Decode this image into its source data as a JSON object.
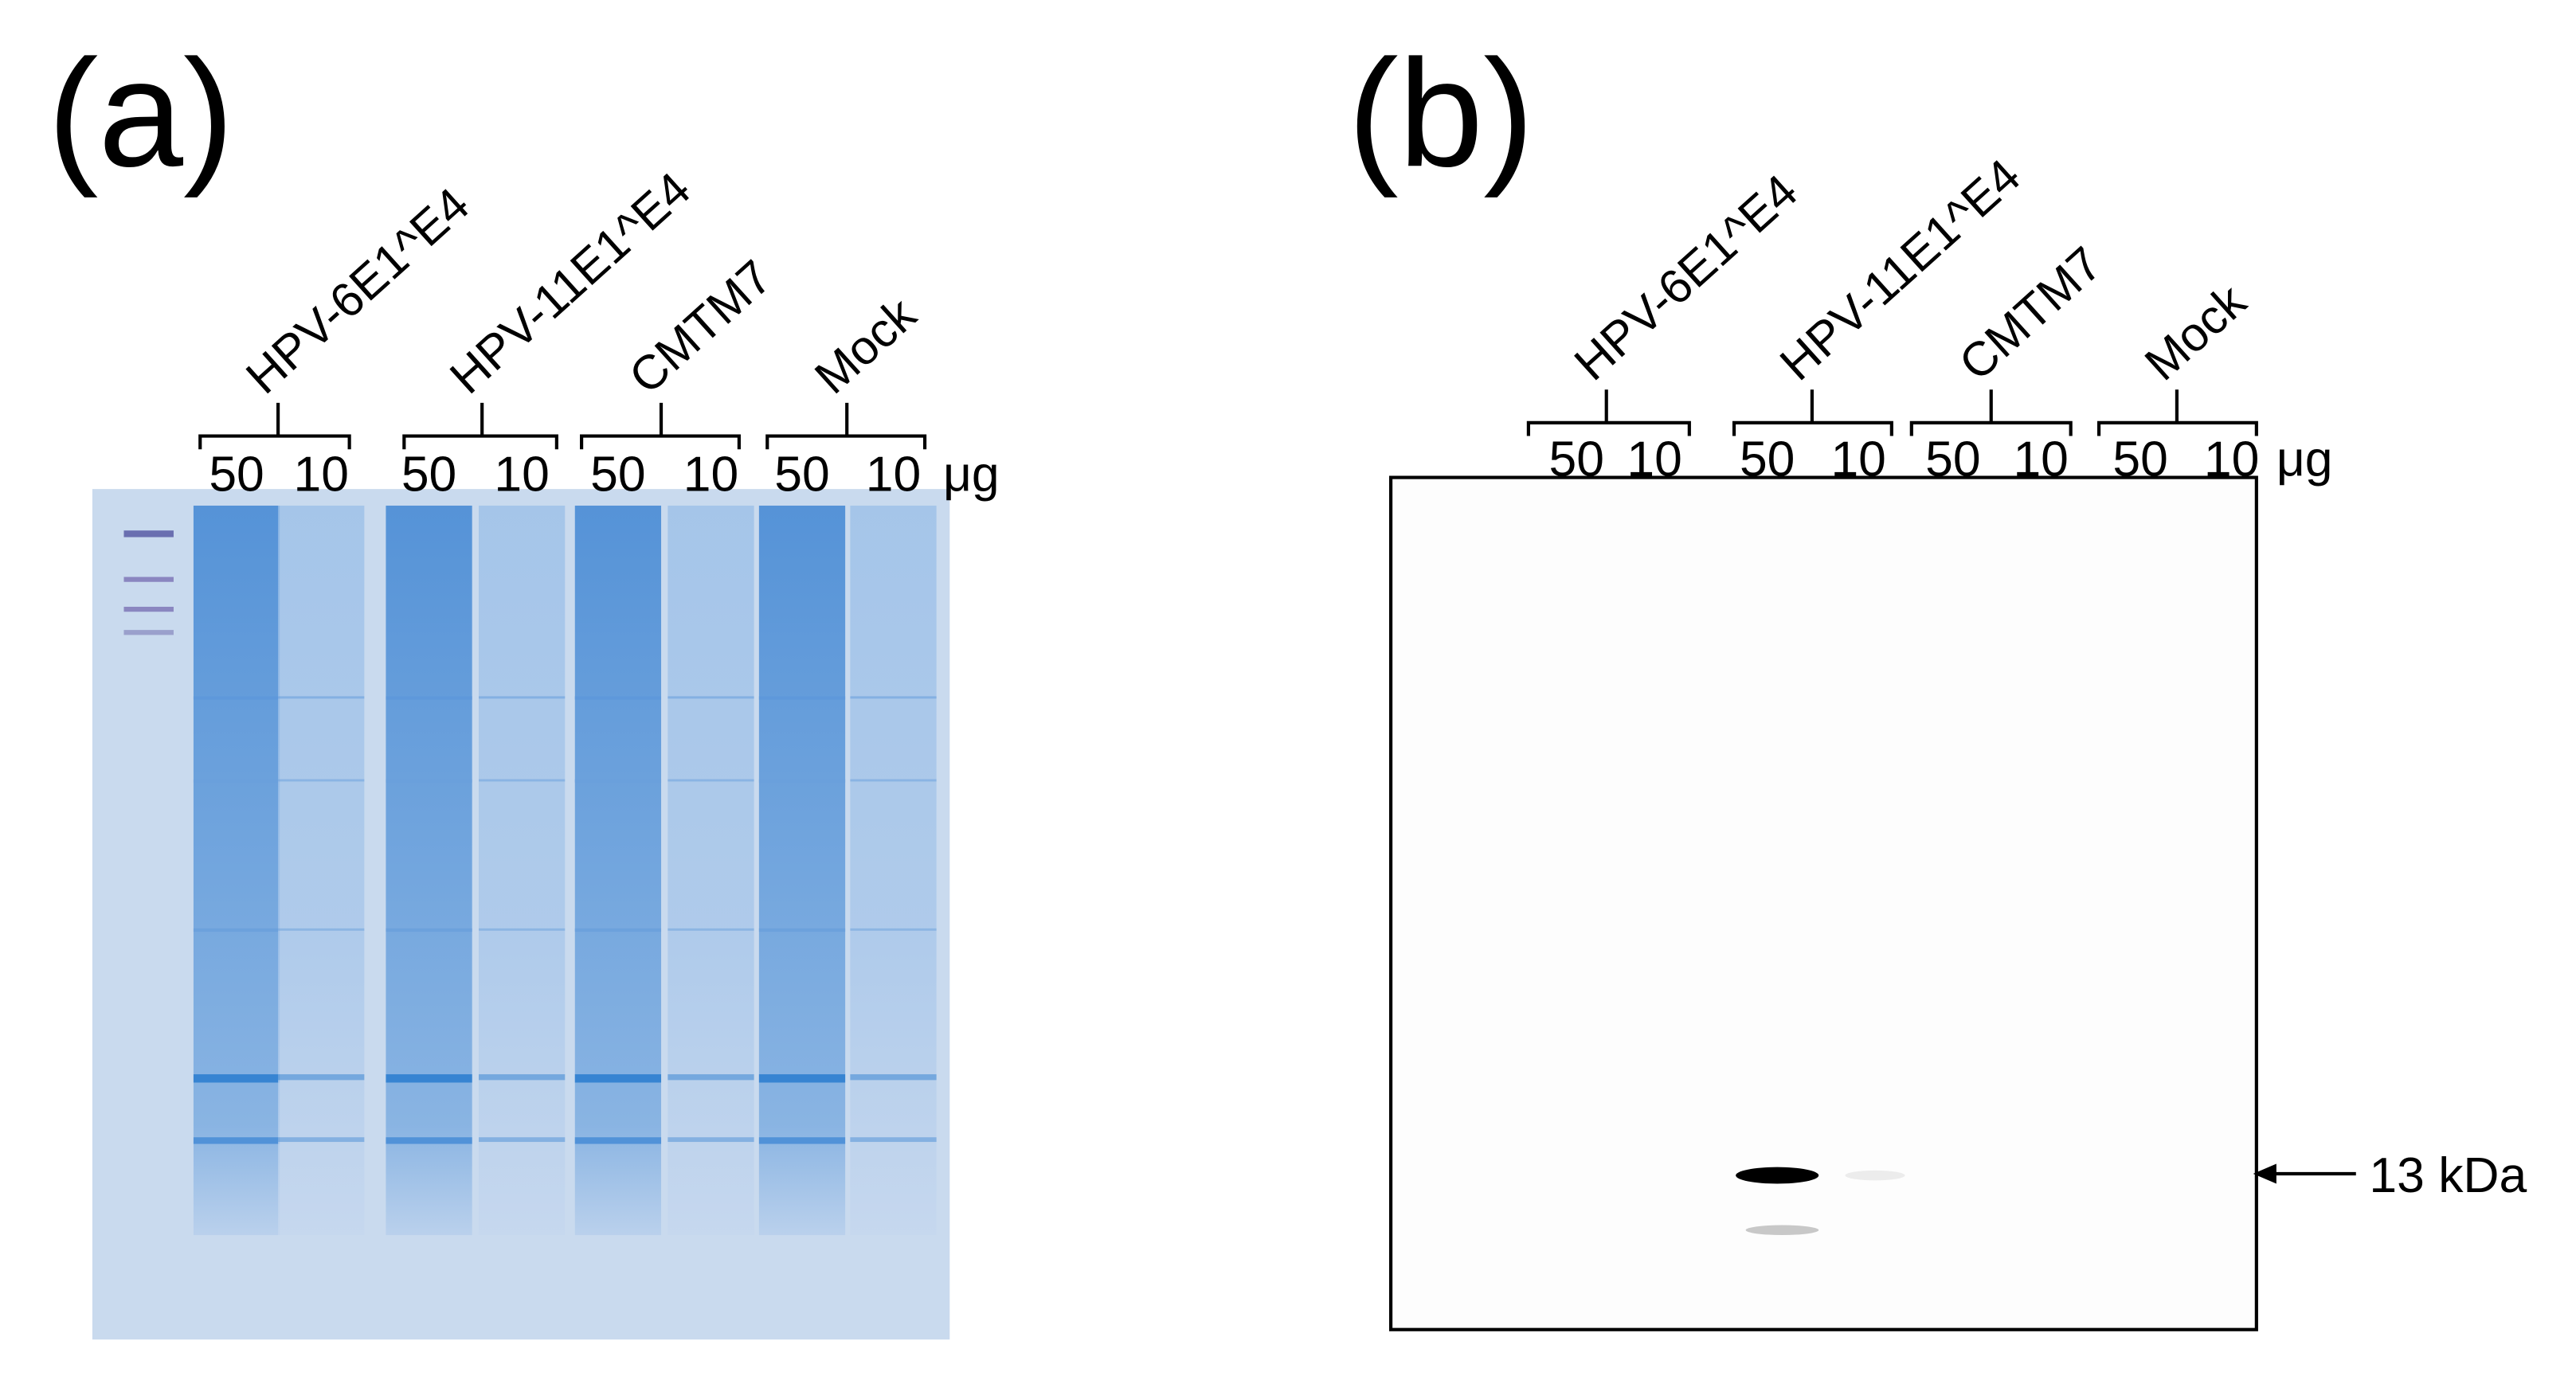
{
  "panels": [
    {
      "label": "(a)",
      "unit": "μg",
      "groups": [
        {
          "name": "HPV-6E1^E4",
          "amounts": [
            50,
            10
          ]
        },
        {
          "name": "HPV-11E1^E4",
          "amounts": [
            50,
            10
          ]
        },
        {
          "name": "CMTM7",
          "amounts": [
            50,
            10
          ]
        },
        {
          "name": "Mock",
          "amounts": [
            50,
            10
          ]
        }
      ]
    },
    {
      "label": "(b)",
      "unit": "μg",
      "marker": "13 kDa",
      "groups": [
        {
          "name": "HPV-6E1^E4",
          "amounts": [
            50,
            10
          ]
        },
        {
          "name": "HPV-11E1^E4",
          "amounts": [
            50,
            10
          ]
        },
        {
          "name": "CMTM7",
          "amounts": [
            50,
            10
          ]
        },
        {
          "name": "Mock",
          "amounts": [
            50,
            10
          ]
        }
      ]
    }
  ]
}
